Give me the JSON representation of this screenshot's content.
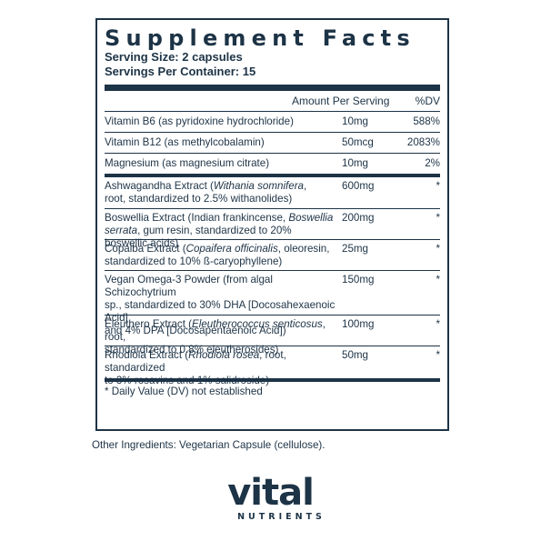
{
  "title": "Supplement Facts",
  "serving_size": "Serving Size: 2 capsules",
  "servings_per_container": "Servings Per Container: 15",
  "header": {
    "amount": "Amount Per Serving",
    "dv": "%DV"
  },
  "rows": [
    {
      "name": "Vitamin B6 (as pyridoxine hydrochloride)",
      "amount": "10mg",
      "dv": "588%"
    },
    {
      "name": "Vitamin B12 (as methylcobalamin)",
      "amount": "50mcg",
      "dv": "2083%"
    },
    {
      "name": "Magnesium (as magnesium citrate)",
      "amount": "10mg",
      "dv": "2%"
    },
    {
      "name_parts": [
        "Ashwagandha Extract (",
        "Withania somnifera",
        ",",
        "root, standardized to 2.5% withanolides)"
      ],
      "amount": "600mg",
      "dv": "*"
    },
    {
      "name_parts": [
        "Boswellia Extract (Indian frankincense, ",
        "Boswellia",
        "serrata",
        ", gum resin, standardized to 20% boswellic acids)"
      ],
      "amount": "200mg",
      "dv": "*"
    },
    {
      "name_parts": [
        "Copaiba Extract (",
        "Copaifera officinalis",
        ", oleoresin,",
        "standardized to 10% ß-caryophyllene)"
      ],
      "amount": "25mg",
      "dv": "*"
    },
    {
      "name_lines": [
        "Vegan Omega-3 Powder (from algal Schizochytrium",
        "sp., standardized to 30% DHA [Docosahexaenoic Acid]",
        "and 4% DPA [Docosapentaenoic Acid])"
      ],
      "amount": "150mg",
      "dv": "*"
    },
    {
      "name_parts": [
        "Eleuthero Extract (",
        "Eleutherococcus senticosus",
        ", root,",
        "standardized to 0.8% eleutherosides)"
      ],
      "amount": "100mg",
      "dv": "*"
    },
    {
      "name_parts": [
        "Rhodiola Extract (",
        "Rhodiola rosea",
        ", root, standardized",
        "to 3% rosavins and 1% salidroside)"
      ],
      "amount": "50mg",
      "dv": "*"
    }
  ],
  "footnote": "* Daily Value (DV) not established",
  "other_ingredients": "Other Ingredients: Vegetarian Capsule (cellulose).",
  "logo": {
    "brand": "vital",
    "sub": "NUTRIENTS"
  },
  "colors": {
    "ink": "#1d3346"
  }
}
